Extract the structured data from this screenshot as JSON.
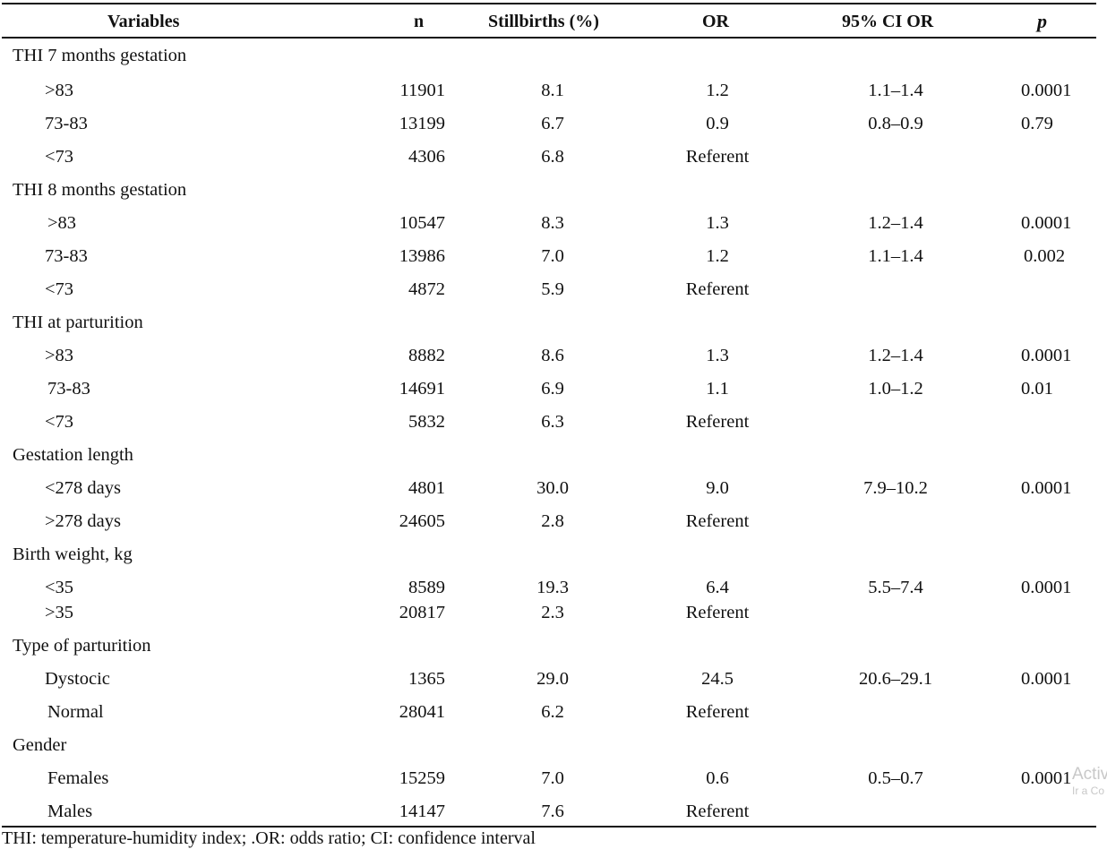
{
  "headers": {
    "variables": "Variables",
    "n": "n",
    "stillbirths": "Stillbirths (%)",
    "or": "OR",
    "ci": "95% CI OR",
    "p": "p"
  },
  "groups": [
    {
      "label": "THI 7 months gestation",
      "rows": [
        {
          "label": ">83",
          "n": "11901",
          "sb": "8.1",
          "or": "1.2",
          "ci": "1.1–1.4",
          "p": "0.0001"
        },
        {
          "label": "73-83",
          "n": "13199",
          "sb": "6.7",
          "or": "0.9",
          "ci": "0.8–0.9",
          "p": "0.79"
        },
        {
          "label": "<73",
          "n": "4306",
          "sb": "6.8",
          "or": "Referent",
          "ci": "",
          "p": ""
        }
      ]
    },
    {
      "label": "THI 8 months gestation",
      "rows": [
        {
          "label": ">83",
          "n": "10547",
          "sb": "8.3",
          "or": "1.3",
          "ci": "1.2–1.4",
          "p": "0.0001"
        },
        {
          "label": "73-83",
          "n": "13986",
          "sb": "7.0",
          "or": "1.2",
          "ci": "1.1–1.4",
          "p": "0.002"
        },
        {
          "label": "<73",
          "n": "4872",
          "sb": "5.9",
          "or": "Referent",
          "ci": "",
          "p": ""
        }
      ]
    },
    {
      "label": "THI at parturition",
      "rows": [
        {
          "label": ">83",
          "n": "8882",
          "sb": "8.6",
          "or": "1.3",
          "ci": "1.2–1.4",
          "p": "0.0001"
        },
        {
          "label": "73-83",
          "n": "14691",
          "sb": "6.9",
          "or": "1.1",
          "ci": "1.0–1.2",
          "p": "0.01"
        },
        {
          "label": "<73",
          "n": "5832",
          "sb": "6.3",
          "or": "Referent",
          "ci": "",
          "p": ""
        }
      ]
    },
    {
      "label": "Gestation length",
      "rows": [
        {
          "label": "<278 days",
          "n": "4801",
          "sb": "30.0",
          "or": "9.0",
          "ci": "7.9–10.2",
          "p": "0.0001"
        },
        {
          "label": ">278 days",
          "n": "24605",
          "sb": "2.8",
          "or": "Referent",
          "ci": "",
          "p": ""
        }
      ]
    },
    {
      "label": "Birth weight, kg",
      "rows": [
        {
          "label": "<35",
          "n": "8589",
          "sb": "19.3",
          "or": "6.4",
          "ci": "5.5–7.4",
          "p": "0.0001"
        },
        {
          "label": ">35",
          "n": "20817",
          "sb": "2.3",
          "or": "Referent",
          "ci": "",
          "p": ""
        }
      ]
    },
    {
      "label": "Type of parturition",
      "rows": [
        {
          "label": "Dystocic",
          "n": "1365",
          "sb": "29.0",
          "or": "24.5",
          "ci": "20.6–29.1",
          "p": "0.0001"
        },
        {
          "label": "Normal",
          "n": "28041",
          "sb": "6.2",
          "or": "Referent",
          "ci": "",
          "p": ""
        }
      ]
    },
    {
      "label": "Gender",
      "rows": [
        {
          "label": "Females",
          "n": "15259",
          "sb": "7.0",
          "or": "0.6",
          "ci": "0.5–0.7",
          "p": "0.0001"
        },
        {
          "label": "Males",
          "n": "14147",
          "sb": "7.6",
          "or": "Referent",
          "ci": "",
          "p": ""
        }
      ]
    }
  ],
  "footnote": "THI: temperature-humidity index; .OR: odds ratio; CI: confidence interval",
  "watermark": {
    "line1": "Activ",
    "line2": "Ir a Co"
  }
}
